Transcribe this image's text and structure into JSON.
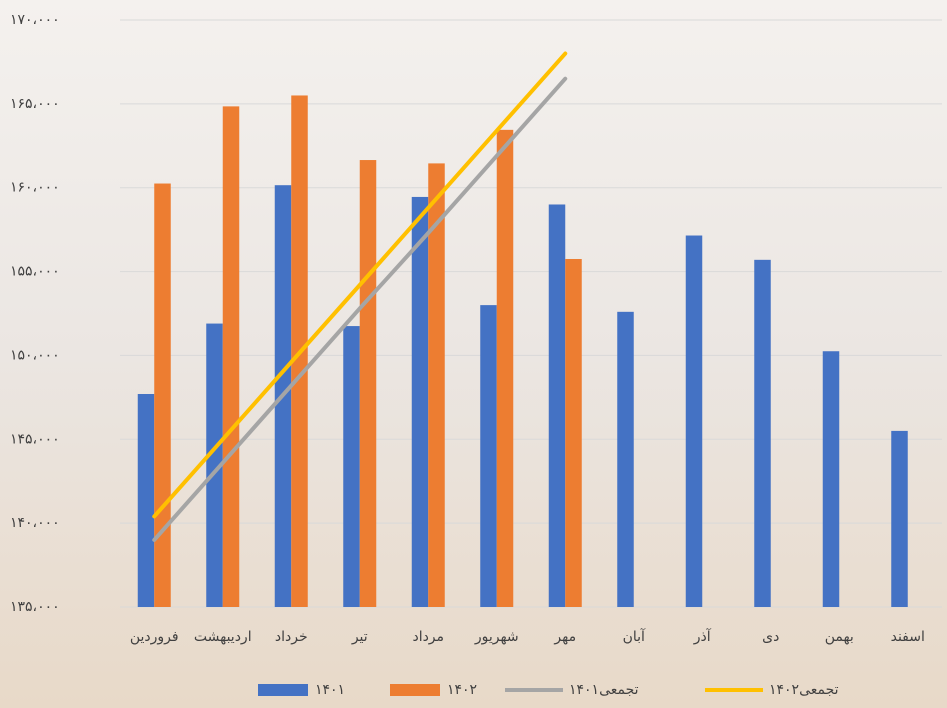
{
  "chart_data": {
    "type": "bar",
    "categories": [
      "فروردین",
      "اردیبهشت",
      "خرداد",
      "تیر",
      "مرداد",
      "شهریور",
      "مهر",
      "آبان",
      "آذر",
      "دی",
      "بهمن",
      "اسفند"
    ],
    "series": [
      {
        "name": "۱۴۰۱",
        "type": "bar",
        "color": "#4472c4",
        "values": [
          147700,
          151900,
          160150,
          151750,
          159450,
          153000,
          159000,
          152600,
          157150,
          155700,
          150250,
          145500
        ]
      },
      {
        "name": "۱۴۰۲",
        "type": "bar",
        "color": "#ed7d31",
        "values": [
          160250,
          164850,
          165500,
          161650,
          161450,
          163450,
          155750,
          null,
          null,
          null,
          null,
          null
        ]
      },
      {
        "name": "تجمعی۱۴۰۱",
        "type": "line",
        "color": "#a5a5a5",
        "values": [
          139000,
          143600,
          148200,
          152800,
          157300,
          161900,
          166500,
          null,
          null,
          null,
          null,
          null
        ]
      },
      {
        "name": "تجمعی۱۴۰۲",
        "type": "line",
        "color": "#ffc000",
        "values": [
          140400,
          145000,
          149600,
          154200,
          158800,
          163400,
          168000,
          null,
          null,
          null,
          null,
          null
        ]
      }
    ],
    "ylim": [
      135000,
      170000
    ],
    "yticks": [
      {
        "value": 135000,
        "label": "۱۳۵،۰۰۰"
      },
      {
        "value": 140000,
        "label": "۱۴۰،۰۰۰"
      },
      {
        "value": 145000,
        "label": "۱۴۵،۰۰۰"
      },
      {
        "value": 150000,
        "label": "۱۵۰،۰۰۰"
      },
      {
        "value": 155000,
        "label": "۱۵۵،۰۰۰"
      },
      {
        "value": 160000,
        "label": "۱۶۰،۰۰۰"
      },
      {
        "value": 165000,
        "label": "۱۶۵،۰۰۰"
      },
      {
        "value": 170000,
        "label": "۱۷۰،۰۰۰"
      }
    ],
    "grid": true,
    "legend": "bottom"
  }
}
